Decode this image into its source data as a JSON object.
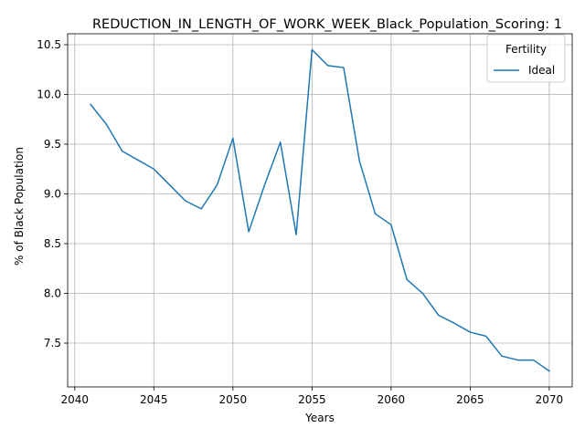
{
  "chart_data": {
    "type": "line",
    "title": "REDUCTION_IN_LENGTH_OF_WORK_WEEK_Black_Population_Scoring: 1",
    "xlabel": "Years",
    "ylabel": "% of Black Population",
    "xlim": [
      2039.55,
      2071.45
    ],
    "ylim": [
      7.06,
      10.61
    ],
    "xticks": [
      2040,
      2045,
      2050,
      2055,
      2060,
      2065,
      2070
    ],
    "xtick_labels": [
      "2040",
      "2045",
      "2050",
      "2055",
      "2060",
      "2065",
      "2070"
    ],
    "yticks": [
      7.5,
      8.0,
      8.5,
      9.0,
      9.5,
      10.0,
      10.5
    ],
    "ytick_labels": [
      "7.5",
      "8.0",
      "8.5",
      "9.0",
      "9.5",
      "10.0",
      "10.5"
    ],
    "grid": true,
    "legend": {
      "title": "Fertility",
      "position": "upper right"
    },
    "series": [
      {
        "name": "Ideal",
        "color": "#1f77b4",
        "x": [
          2041,
          2042,
          2043,
          2044,
          2045,
          2046,
          2047,
          2048,
          2049,
          2050,
          2051,
          2052,
          2053,
          2054,
          2055,
          2056,
          2057,
          2058,
          2059,
          2060,
          2061,
          2062,
          2063,
          2064,
          2065,
          2066,
          2067,
          2068,
          2069,
          2070
        ],
        "y": [
          9.9,
          9.7,
          9.43,
          9.34,
          9.25,
          9.09,
          8.93,
          8.85,
          9.09,
          9.56,
          8.62,
          9.09,
          9.52,
          8.59,
          10.45,
          10.29,
          10.27,
          9.33,
          8.8,
          8.69,
          8.14,
          8.0,
          7.78,
          7.7,
          7.61,
          7.57,
          7.37,
          7.33,
          7.33,
          7.22
        ]
      }
    ]
  }
}
